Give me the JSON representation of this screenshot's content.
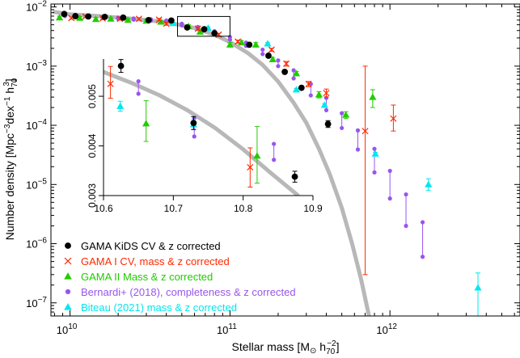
{
  "chart_data": {
    "type": "scatter",
    "title": "",
    "main": {
      "xscale": "log",
      "yscale": "log",
      "xlim": [
        7600000000.0,
        6500000000000.0
      ],
      "ylim": [
        6e-08,
        0.0112
      ],
      "xticks": [
        {
          "value": 10000000000.0,
          "label": "10^10"
        },
        {
          "value": 100000000000.0,
          "label": "10^11"
        },
        {
          "value": 1000000000000.0,
          "label": "10^12"
        }
      ],
      "yticks": [
        {
          "value": 0.01,
          "label": "10^-2"
        },
        {
          "value": 0.001,
          "label": "10^-3"
        },
        {
          "value": 0.0001,
          "label": "10^-4"
        },
        {
          "value": 1e-05,
          "label": "10^-5"
        },
        {
          "value": 1e-06,
          "label": "10^-6"
        },
        {
          "value": 1e-07,
          "label": "10^-7"
        }
      ]
    },
    "inset": {
      "xscale": "log",
      "yscale": "linear",
      "xlim": [
        10.6,
        10.9
      ],
      "xlim_note": "log10 stellar mass",
      "ylim": [
        0.003,
        0.00575
      ],
      "xticks": [
        10.6,
        10.7,
        10.8,
        10.9
      ],
      "xtick_labels": [
        "10.6",
        "10.7",
        "10.8",
        "10.9"
      ],
      "yticks": [
        0.003,
        0.004,
        0.005
      ],
      "ytick_labels": [
        "0.003",
        "0.004",
        "0.005"
      ]
    },
    "xlabel": {
      "main": "Stellar mass [M",
      "sub": "⊙",
      "mid": " h",
      "sub2": "70",
      "sup2": "−2",
      "end": "]"
    },
    "ylabel": {
      "main": "Number density [Mpc",
      "sup1": "−3",
      "mid": "dex",
      "sup2": "−1",
      "mid2": " h",
      "sub3": "70",
      "sup3": "3",
      "end": "]"
    },
    "legend_position": "bottom-left",
    "legend": [
      {
        "label": "GAMA KiDS CV & z corrected",
        "color": "#000000",
        "text_color": "#000000",
        "marker": "circle"
      },
      {
        "label": "GAMA I CV, mass & z corrected",
        "color": "#ff2a00",
        "text_color": "#ff2a00",
        "marker": "x"
      },
      {
        "label": "GAMA II Mass & z corrected",
        "color": "#22cc00",
        "text_color": "#22cc00",
        "marker": "triangle"
      },
      {
        "label": "Bernardi+ (2018), completeness & z corrected",
        "color": "#9955ee",
        "text_color": "#9955ee",
        "marker": "small-circle"
      },
      {
        "label": "Biteau (2021) mass & z corrected",
        "color": "#00e8ee",
        "text_color": "#00e8ee",
        "marker": "triangle"
      }
    ],
    "model_curve": {
      "color": "#b8b8b8",
      "x": [
        8000000000.0,
        10000000000.0,
        15000000000.0,
        20000000000.0,
        30000000000.0,
        40000000000.0,
        50000000000.0,
        60000000000.0,
        80000000000.0,
        100000000000.0,
        130000000000.0,
        160000000000.0,
        200000000000.0,
        250000000000.0,
        300000000000.0,
        360000000000.0,
        420000000000.0,
        500000000000.0,
        580000000000.0,
        660000000000.0,
        740000000000.0
      ],
      "y": [
        0.0082,
        0.0075,
        0.007,
        0.0066,
        0.006,
        0.0055,
        0.0049,
        0.0044,
        0.0034,
        0.00255,
        0.00165,
        0.00105,
        0.00055,
        0.00024,
        0.00011,
        4e-05,
        1.5e-05,
        4e-06,
        1e-06,
        2.5e-07,
        6e-08
      ]
    },
    "series": [
      {
        "name": "GAMA KiDS CV & z corrected",
        "color": "#000000",
        "marker": "circle",
        "x": [
          9200000000.0,
          10800000000.0,
          13000000000.0,
          16500000000.0,
          21500000000.0,
          31000000000.0,
          43000000000.0,
          54000000000.0,
          69000000000.0,
          80000000000.0,
          132000000000.0,
          174000000000.0,
          220000000000.0,
          280000000000.0,
          410000000000.0
        ],
        "y": [
          0.0076,
          0.007,
          0.0069,
          0.0068,
          0.0066,
          0.006,
          0.0059,
          0.0045,
          0.0042,
          0.0036,
          0.0023,
          0.0015,
          0.0008,
          0.00043,
          0.000105
        ],
        "yerr_lo": [
          0.0074,
          0.0068,
          0.0067,
          0.0066,
          0.0064,
          0.0058,
          0.0057,
          0.00435,
          0.00405,
          0.00345,
          0.0022,
          0.00142,
          0.00075,
          0.0004,
          9.2e-05
        ],
        "yerr_hi": [
          0.0078,
          0.0072,
          0.0071,
          0.007,
          0.0068,
          0.0062,
          0.0061,
          0.00465,
          0.00435,
          0.00375,
          0.0024,
          0.00158,
          0.00085,
          0.00046,
          0.00012
        ]
      },
      {
        "name": "GAMA I CV, mass & z corrected",
        "color": "#ff2a00",
        "marker": "x",
        "x": [
          10200000000.0,
          12500000000.0,
          16000000000.0,
          20500000000.0,
          27000000000.0,
          36000000000.0,
          40000000000.0,
          63000000000.0,
          85000000000.0,
          112000000000.0,
          182000000000.0,
          225000000000.0,
          310000000000.0,
          400000000000.0,
          700000000000.0,
          1050000000000.0
        ],
        "y": [
          0.0065,
          0.0069,
          0.0064,
          0.0063,
          0.0063,
          0.0061,
          0.0052,
          0.0043,
          0.0034,
          0.0026,
          0.0019,
          0.0011,
          0.0005,
          0.00035,
          8e-05,
          0.00013
        ],
        "yerr_lo": [
          0.0062,
          0.0066,
          0.0061,
          0.006,
          0.006,
          0.0058,
          0.0049,
          0.00405,
          0.0032,
          0.00245,
          0.00178,
          0.001,
          0.00045,
          0.0003,
          3e-07,
          8e-05
        ],
        "yerr_hi": [
          0.0068,
          0.0072,
          0.0067,
          0.0066,
          0.0066,
          0.0064,
          0.0055,
          0.00455,
          0.0036,
          0.00275,
          0.002,
          0.0012,
          0.00055,
          0.00041,
          0.001,
          0.00022
        ]
      },
      {
        "name": "GAMA II Mass & z corrected",
        "color": "#22cc00",
        "marker": "triangle",
        "x": [
          8600000000.0,
          11500000000.0,
          14500000000.0,
          18000000000.0,
          23000000000.0,
          30000000000.0,
          37000000000.0,
          55000000000.0,
          65000000000.0,
          100000000000.0,
          118000000000.0,
          145000000000.0,
          185000000000.0,
          260000000000.0,
          360000000000.0,
          530000000000.0,
          780000000000.0
        ],
        "y": [
          0.0066,
          0.0065,
          0.0062,
          0.0063,
          0.006,
          0.0058,
          0.0056,
          0.0047,
          0.0038,
          0.0023,
          0.0025,
          0.0023,
          0.0013,
          0.00075,
          0.00033,
          0.00015,
          0.0003
        ],
        "yerr_lo": [
          0.0062,
          0.0061,
          0.0058,
          0.0059,
          0.0056,
          0.0054,
          0.0052,
          0.0044,
          0.0035,
          0.0021,
          0.0023,
          0.0021,
          0.0012,
          0.00069,
          0.00029,
          0.00013,
          0.0002
        ],
        "yerr_hi": [
          0.007,
          0.0069,
          0.0066,
          0.0067,
          0.0064,
          0.0062,
          0.006,
          0.005,
          0.0041,
          0.0025,
          0.0027,
          0.0025,
          0.0014,
          0.00081,
          0.00037,
          0.00017,
          0.0004
        ]
      },
      {
        "name": "Bernardi+ (2018), completeness & z corrected",
        "color": "#9955ee",
        "marker": "small-circle",
        "x": [
          9300000000.0,
          11000000000.0,
          13000000000.0,
          16000000000.0,
          20000000000.0,
          25000000000.0,
          32000000000.0,
          40000000000.0,
          50000000000.0,
          63000000000.0,
          80000000000.0,
          100000000000.0,
          126000000000.0,
          160000000000.0,
          200000000000.0,
          250000000000.0,
          320000000000.0,
          400000000000.0,
          500000000000.0,
          630000000000.0,
          800000000000.0,
          1000000000000.0,
          1260000000000.0,
          1600000000000.0
        ],
        "y": [
          0.007,
          0.0068,
          0.0067,
          0.0065,
          0.0063,
          0.0061,
          0.0059,
          0.0056,
          0.0049,
          0.0043,
          0.0036,
          0.0028,
          0.0022,
          0.0016,
          0.001,
          0.00062,
          0.00032,
          0.00018,
          9e-05,
          3.9e-05,
          1.6e-05,
          5.8e-06,
          2e-06,
          6e-07
        ],
        "y_alt": [
          0.0073,
          0.0071,
          0.007,
          0.0068,
          0.0066,
          0.0064,
          0.0062,
          0.0059,
          0.0052,
          0.0046,
          0.0039,
          0.0031,
          0.0025,
          0.0019,
          0.00125,
          0.00085,
          0.0005,
          0.00029,
          0.00016,
          8.2e-05,
          4e-05,
          1.7e-05,
          6.8e-06,
          2.3e-06
        ]
      },
      {
        "name": "Biteau (2021) mass & z corrected",
        "color": "#00e8ee",
        "marker": "triangle",
        "x": [
          44000000000.0,
          73000000000.0,
          172000000000.0,
          260000000000.0,
          390000000000.0,
          810000000000.0,
          1740000000000.0,
          3550000000000.0
        ],
        "y": [
          0.0053,
          0.0044,
          0.0024,
          0.0004,
          0.00022,
          3.3e-05,
          1e-05,
          1.8e-07
        ],
        "yerr_lo": [
          0.0051,
          0.0042,
          0.0023,
          0.00038,
          0.00021,
          3.1e-05,
          8e-06,
          6e-08
        ],
        "yerr_hi": [
          0.0055,
          0.0046,
          0.0025,
          0.00042,
          0.00023,
          3.5e-05,
          1.25e-05,
          3.2e-07
        ]
      }
    ],
    "inset_series": [
      {
        "name": "GAMA KiDS CV & z corrected",
        "color": "#000000",
        "marker": "circle",
        "x": [
          10.625,
          10.729,
          10.874
        ],
        "y": [
          0.00561,
          0.00446,
          0.00338
        ],
        "yerr_lo": [
          0.00548,
          0.00433,
          0.00327
        ],
        "yerr_hi": [
          0.00574,
          0.00459,
          0.00349
        ]
      },
      {
        "name": "GAMA I CV, mass & z corrected",
        "color": "#ff2a00",
        "marker": "x",
        "x": [
          10.61,
          10.81
        ],
        "y": [
          0.00525,
          0.00357
        ],
        "yerr_lo": [
          0.00496,
          0.00317
        ],
        "yerr_hi": [
          0.0056,
          0.00396
        ]
      },
      {
        "name": "GAMA II Mass & z corrected",
        "color": "#22cc00",
        "marker": "triangle",
        "x": [
          10.661,
          10.82
        ],
        "y": [
          0.00445,
          0.0038
        ],
        "yerr_lo": [
          0.00409,
          0.00325
        ],
        "yerr_hi": [
          0.00491,
          0.00439
        ]
      },
      {
        "name": "Bernardi+ (2018), completeness & z corrected",
        "color": "#9955ee",
        "marker": "small-circle",
        "x": [
          10.65,
          10.73,
          10.844
        ],
        "y": [
          0.00505,
          0.00419,
          0.00372
        ],
        "y_alt": [
          0.0053,
          0.00456,
          0.00404
        ]
      },
      {
        "name": "Biteau (2021) mass & z corrected",
        "color": "#00e8ee",
        "marker": "triangle",
        "x": [
          10.624,
          10.729
        ],
        "y": [
          0.0048,
          0.00443
        ],
        "yerr_lo": [
          0.0047,
          0.00433
        ],
        "yerr_hi": [
          0.0049,
          0.00453
        ]
      }
    ],
    "inset_curve": {
      "color": "#b8b8b8",
      "x": [
        10.598,
        10.64,
        10.68,
        10.72,
        10.76,
        10.8,
        10.84,
        10.878
      ],
      "y": [
        0.0055,
        0.00527,
        0.00502,
        0.00472,
        0.00436,
        0.00393,
        0.00345,
        0.00301
      ]
    },
    "zoom_box": {
      "x": [
        47000000000.0,
        100000000000.0
      ],
      "y": [
        0.0032,
        0.0069
      ]
    }
  }
}
